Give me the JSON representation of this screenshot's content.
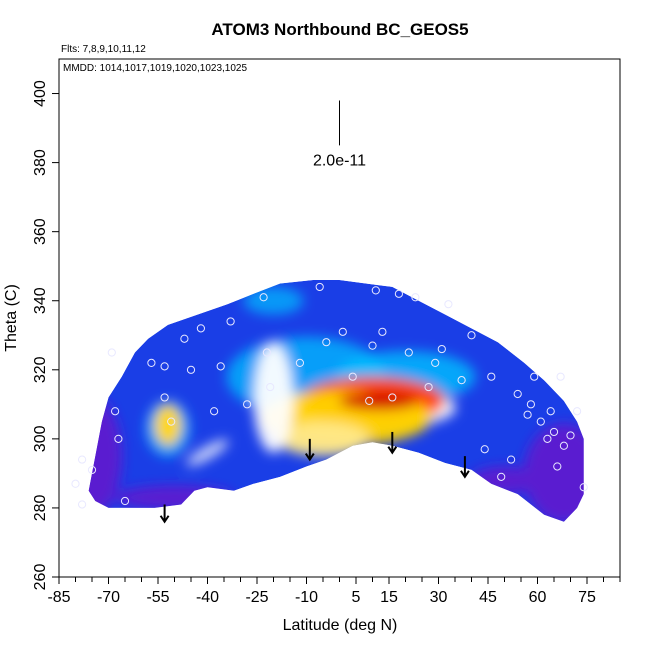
{
  "chart_data": {
    "type": "heatmap",
    "title": "ATOM3 Northbound BC_GEOS5",
    "flights_label": "Flts: 7,8,9,10,11,12",
    "dates_label": "MMDD: 1014,1017,1019,1020,1023,1025",
    "xlabel": "Latitude (deg N)",
    "ylabel": "Theta (C)",
    "xlim": [
      -85,
      85
    ],
    "ylim": [
      260,
      410
    ],
    "x_ticks": [
      -85,
      -70,
      -55,
      -40,
      -25,
      -10,
      5,
      15,
      30,
      45,
      60,
      75
    ],
    "x_tick_labels": [
      "-85",
      "-70",
      "-55",
      "-40",
      "-25",
      "-10",
      "5",
      "15",
      "30",
      "45",
      "60",
      "75"
    ],
    "y_ticks": [
      260,
      280,
      300,
      320,
      340,
      360,
      380,
      400
    ],
    "y_tick_labels": [
      "260",
      "280",
      "300",
      "320",
      "340",
      "360",
      "380",
      "400"
    ],
    "scale_bar": {
      "x": 0,
      "y_top": 398,
      "y_bottom": 385,
      "label": "2.0e-11"
    },
    "colors": {
      "low": "#5a1fd0",
      "mid_low": "#1a3ee6",
      "mid": "#00bfff",
      "mid_high": "#ffffff",
      "high_low": "#ffd400",
      "high": "#ff4000",
      "peak": "#d40000"
    },
    "boundary_top": [
      [
        -72,
        305
      ],
      [
        -70,
        312
      ],
      [
        -66,
        318
      ],
      [
        -62,
        325
      ],
      [
        -58,
        329
      ],
      [
        -52,
        333
      ],
      [
        -46,
        335
      ],
      [
        -40,
        337
      ],
      [
        -34,
        339
      ],
      [
        -26,
        342
      ],
      [
        -18,
        345
      ],
      [
        -8,
        346
      ],
      [
        0,
        346
      ],
      [
        8,
        345
      ],
      [
        16,
        344
      ],
      [
        24,
        340
      ],
      [
        32,
        336
      ],
      [
        40,
        332
      ],
      [
        48,
        328
      ],
      [
        56,
        322
      ],
      [
        62,
        317
      ],
      [
        68,
        311
      ],
      [
        72,
        305
      ],
      [
        74,
        300
      ]
    ],
    "boundary_bottom": [
      [
        74,
        284
      ],
      [
        72,
        280
      ],
      [
        68,
        276
      ],
      [
        62,
        278
      ],
      [
        54,
        284
      ],
      [
        46,
        287
      ],
      [
        40,
        291
      ],
      [
        32,
        293
      ],
      [
        24,
        296
      ],
      [
        16,
        298
      ],
      [
        10,
        299
      ],
      [
        4,
        298
      ],
      [
        -4,
        294
      ],
      [
        -10,
        292
      ],
      [
        -18,
        289
      ],
      [
        -26,
        287
      ],
      [
        -32,
        285
      ],
      [
        -40,
        286
      ],
      [
        -44,
        285
      ],
      [
        -48,
        281
      ],
      [
        -56,
        280
      ],
      [
        -70,
        280
      ],
      [
        -74,
        282
      ],
      [
        -76,
        285
      ]
    ],
    "hotspots": [
      {
        "x": 10,
        "y": 311,
        "rx": 22,
        "ry": 7,
        "value": 1.0
      },
      {
        "x": 2,
        "y": 306,
        "rx": 26,
        "ry": 8,
        "value": 0.65
      },
      {
        "x": -52,
        "y": 304,
        "rx": 4,
        "ry": 6,
        "value": 0.7
      },
      {
        "x": -5,
        "y": 300,
        "rx": 14,
        "ry": 5,
        "value": 0.4
      },
      {
        "x": -20,
        "y": 312,
        "rx": 6,
        "ry": 16,
        "value": 0.25
      }
    ],
    "points": [
      {
        "x": -80,
        "y": 287
      },
      {
        "x": -78,
        "y": 294
      },
      {
        "x": -75,
        "y": 291
      },
      {
        "x": -69,
        "y": 325
      },
      {
        "x": -68,
        "y": 308
      },
      {
        "x": -67,
        "y": 300
      },
      {
        "x": -65,
        "y": 282
      },
      {
        "x": -57,
        "y": 322
      },
      {
        "x": -53,
        "y": 321
      },
      {
        "x": -53,
        "y": 312
      },
      {
        "x": -51,
        "y": 305
      },
      {
        "x": -47,
        "y": 329
      },
      {
        "x": -45,
        "y": 320
      },
      {
        "x": -42,
        "y": 332
      },
      {
        "x": -38,
        "y": 308
      },
      {
        "x": -36,
        "y": 321
      },
      {
        "x": -33,
        "y": 334
      },
      {
        "x": -28,
        "y": 310
      },
      {
        "x": -23,
        "y": 341
      },
      {
        "x": -22,
        "y": 325
      },
      {
        "x": -21,
        "y": 315
      },
      {
        "x": -12,
        "y": 322
      },
      {
        "x": -6,
        "y": 344
      },
      {
        "x": -4,
        "y": 328
      },
      {
        "x": 1,
        "y": 331
      },
      {
        "x": 4,
        "y": 318
      },
      {
        "x": 9,
        "y": 311
      },
      {
        "x": 10,
        "y": 327
      },
      {
        "x": 11,
        "y": 343
      },
      {
        "x": 13,
        "y": 331
      },
      {
        "x": 16,
        "y": 312
      },
      {
        "x": 18,
        "y": 342
      },
      {
        "x": 21,
        "y": 325
      },
      {
        "x": 23,
        "y": 341
      },
      {
        "x": 27,
        "y": 315
      },
      {
        "x": 29,
        "y": 322
      },
      {
        "x": 31,
        "y": 326
      },
      {
        "x": 33,
        "y": 339
      },
      {
        "x": 37,
        "y": 317
      },
      {
        "x": 40,
        "y": 330
      },
      {
        "x": 44,
        "y": 297
      },
      {
        "x": 46,
        "y": 318
      },
      {
        "x": 49,
        "y": 289
      },
      {
        "x": 52,
        "y": 294
      },
      {
        "x": 54,
        "y": 313
      },
      {
        "x": 57,
        "y": 307
      },
      {
        "x": 58,
        "y": 310
      },
      {
        "x": 59,
        "y": 318
      },
      {
        "x": 61,
        "y": 305
      },
      {
        "x": 63,
        "y": 300
      },
      {
        "x": 64,
        "y": 308
      },
      {
        "x": 65,
        "y": 302
      },
      {
        "x": 66,
        "y": 292
      },
      {
        "x": 67,
        "y": 318
      },
      {
        "x": 68,
        "y": 298
      },
      {
        "x": 70,
        "y": 301
      },
      {
        "x": 72,
        "y": 308
      },
      {
        "x": 74,
        "y": 286
      },
      {
        "x": -78,
        "y": 281
      }
    ],
    "arrows": [
      {
        "x": -53,
        "y_top": 281,
        "y_bottom": 276
      },
      {
        "x": -9,
        "y_top": 300,
        "y_bottom": 294
      },
      {
        "x": 16,
        "y_top": 302,
        "y_bottom": 296
      },
      {
        "x": 38,
        "y_top": 295,
        "y_bottom": 289
      }
    ],
    "grid": false
  }
}
